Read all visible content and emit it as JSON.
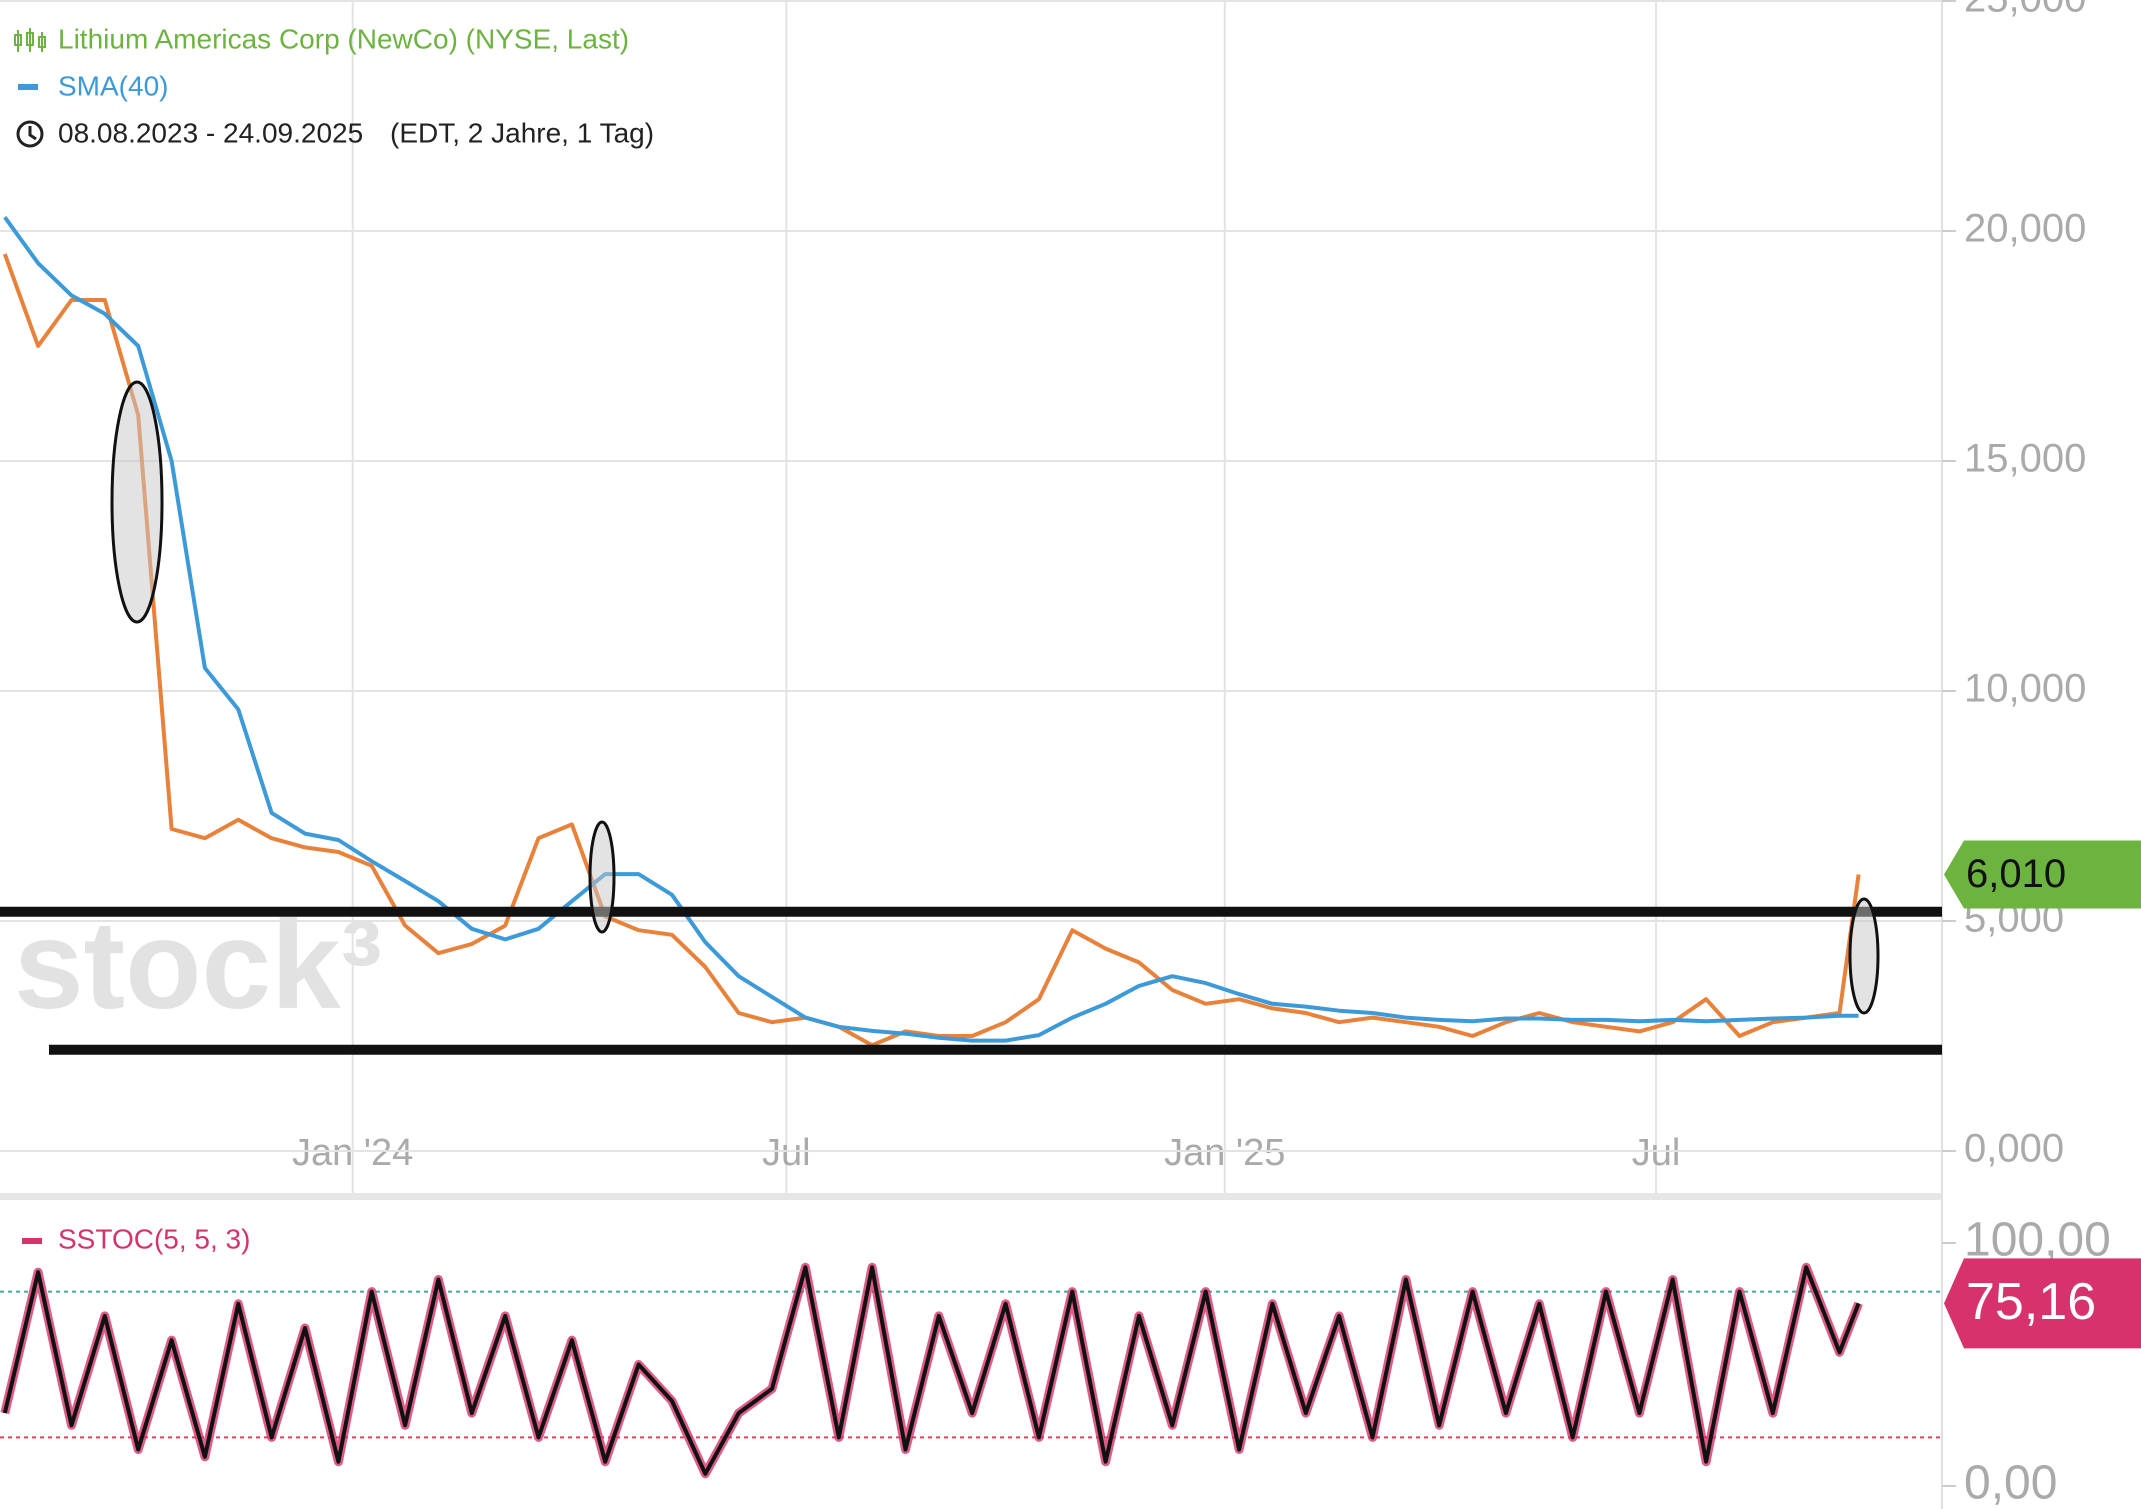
{
  "chart_data": [
    {
      "type": "line",
      "subtitle": "08.08.2023 - 24.09.2025",
      "subtitle_note": "(EDT, 2 Jahre, 1 Tag)",
      "watermark": "stock³",
      "x": [
        "2023-08-08",
        "2023-08-22",
        "2023-09-05",
        "2023-09-19",
        "2023-10-03",
        "2023-10-17",
        "2023-10-31",
        "2023-11-14",
        "2023-11-28",
        "2023-12-12",
        "2023-12-26",
        "2024-01-09",
        "2024-01-23",
        "2024-02-06",
        "2024-02-20",
        "2024-03-05",
        "2024-03-19",
        "2024-04-02",
        "2024-04-16",
        "2024-04-30",
        "2024-05-14",
        "2024-05-28",
        "2024-06-11",
        "2024-06-25",
        "2024-07-09",
        "2024-07-23",
        "2024-08-06",
        "2024-08-20",
        "2024-09-03",
        "2024-09-17",
        "2024-10-01",
        "2024-10-15",
        "2024-10-29",
        "2024-11-12",
        "2024-11-26",
        "2024-12-10",
        "2024-12-24",
        "2025-01-07",
        "2025-01-21",
        "2025-02-04",
        "2025-02-18",
        "2025-03-04",
        "2025-03-18",
        "2025-04-01",
        "2025-04-15",
        "2025-04-29",
        "2025-05-13",
        "2025-05-27",
        "2025-06-10",
        "2025-06-24",
        "2025-07-08",
        "2025-07-22",
        "2025-08-05",
        "2025-08-19",
        "2025-09-02",
        "2025-09-16",
        "2025-09-24"
      ],
      "series": [
        {
          "name": "Lithium Americas Corp (NewCo) (NYSE, Last)",
          "color": "#e8813a",
          "legend_color": "#6cb33f",
          "values": [
            19500,
            17500,
            18500,
            18500,
            16000,
            7000,
            6800,
            7200,
            6800,
            6600,
            6500,
            6200,
            4900,
            4300,
            4500,
            4900,
            6800,
            7100,
            5100,
            4800,
            4700,
            4000,
            3000,
            2800,
            2900,
            2700,
            2300,
            2600,
            2500,
            2500,
            2800,
            3300,
            4800,
            4400,
            4100,
            3500,
            3200,
            3300,
            3100,
            3000,
            2800,
            2900,
            2800,
            2700,
            2500,
            2800,
            3000,
            2800,
            2700,
            2600,
            2800,
            3300,
            2500,
            2800,
            2900,
            3000,
            6010
          ]
        },
        {
          "name": "SMA(40)",
          "color": "#3d9ad9",
          "legend_color": "#3d9ad9",
          "values": [
            20300,
            19300,
            18600,
            18200,
            17500,
            15000,
            10500,
            9600,
            7350,
            6900,
            6760,
            6300,
            5870,
            5430,
            4830,
            4600,
            4830,
            5430,
            6020,
            6020,
            5570,
            4540,
            3800,
            3350,
            2900,
            2700,
            2610,
            2550,
            2460,
            2400,
            2400,
            2520,
            2900,
            3200,
            3590,
            3800,
            3650,
            3410,
            3200,
            3140,
            3050,
            3000,
            2900,
            2850,
            2820,
            2880,
            2880,
            2850,
            2850,
            2820,
            2850,
            2820,
            2850,
            2880,
            2900,
            2940,
            2940
          ]
        }
      ],
      "xlim": [
        "2023-08-06",
        "2025-10-29"
      ],
      "xticks": [
        {
          "value": "2024-01-01",
          "label": "Jan '24"
        },
        {
          "value": "2024-07-01",
          "label": "Jul"
        },
        {
          "value": "2025-01-01",
          "label": "Jan '25"
        },
        {
          "value": "2025-07-01",
          "label": "Jul"
        }
      ],
      "ylim": [
        0,
        25000
      ],
      "yticks": [
        {
          "value": 0,
          "label": "0,000"
        },
        {
          "value": 5000,
          "label": "5,000"
        },
        {
          "value": 10000,
          "label": "10,000"
        },
        {
          "value": 15000,
          "label": "15,000"
        },
        {
          "value": 20000,
          "label": "20,000"
        },
        {
          "value": 25000,
          "label": "25,000"
        }
      ],
      "grid": true,
      "price_tag": {
        "value": 6010,
        "label": "6,010",
        "color": "#6cb33f"
      },
      "hlines": [
        5200,
        2200
      ]
    },
    {
      "type": "line",
      "x": [
        "2023-08-08",
        "2023-08-22",
        "2023-09-05",
        "2023-09-19",
        "2023-10-03",
        "2023-10-17",
        "2023-10-31",
        "2023-11-14",
        "2023-11-28",
        "2023-12-12",
        "2023-12-26",
        "2024-01-09",
        "2024-01-23",
        "2024-02-06",
        "2024-02-20",
        "2024-03-05",
        "2024-03-19",
        "2024-04-02",
        "2024-04-16",
        "2024-04-30",
        "2024-05-14",
        "2024-05-28",
        "2024-06-11",
        "2024-06-25",
        "2024-07-09",
        "2024-07-23",
        "2024-08-06",
        "2024-08-20",
        "2024-09-03",
        "2024-09-17",
        "2024-10-01",
        "2024-10-15",
        "2024-10-29",
        "2024-11-12",
        "2024-11-26",
        "2024-12-10",
        "2024-12-24",
        "2025-01-07",
        "2025-01-21",
        "2025-02-04",
        "2025-02-18",
        "2025-03-04",
        "2025-03-18",
        "2025-04-01",
        "2025-04-15",
        "2025-04-29",
        "2025-05-13",
        "2025-05-27",
        "2025-06-10",
        "2025-06-24",
        "2025-07-08",
        "2025-07-22",
        "2025-08-05",
        "2025-08-19",
        "2025-09-02",
        "2025-09-16",
        "2025-09-24"
      ],
      "series": [
        {
          "name": "SSTOC(5, 5, 3)",
          "color": "#111111",
          "legend_color": "#d6336c",
          "values": [
            30,
            88,
            25,
            70,
            15,
            60,
            12,
            75,
            20,
            65,
            10,
            80,
            25,
            85,
            30,
            70,
            20,
            60,
            10,
            50,
            35,
            5,
            30,
            40,
            90,
            20,
            90,
            15,
            70,
            30,
            75,
            20,
            80,
            10,
            70,
            25,
            80,
            15,
            75,
            30,
            70,
            20,
            85,
            25,
            80,
            30,
            75,
            20,
            80,
            30,
            85,
            10,
            80,
            30,
            90,
            55,
            75.16
          ]
        }
      ],
      "xlim": [
        "2023-08-06",
        "2025-10-29"
      ],
      "ylim": [
        0,
        100
      ],
      "yticks": [
        {
          "value": 0,
          "label": "0,00"
        },
        {
          "value": 100,
          "label": "100,00"
        }
      ],
      "levels": [
        {
          "value": 80,
          "color": "#4aa8a0"
        },
        {
          "value": 20,
          "color": "#e0405a"
        }
      ],
      "price_tag": {
        "value": 75.16,
        "label": "75,16",
        "color": "#d6336c"
      }
    }
  ]
}
